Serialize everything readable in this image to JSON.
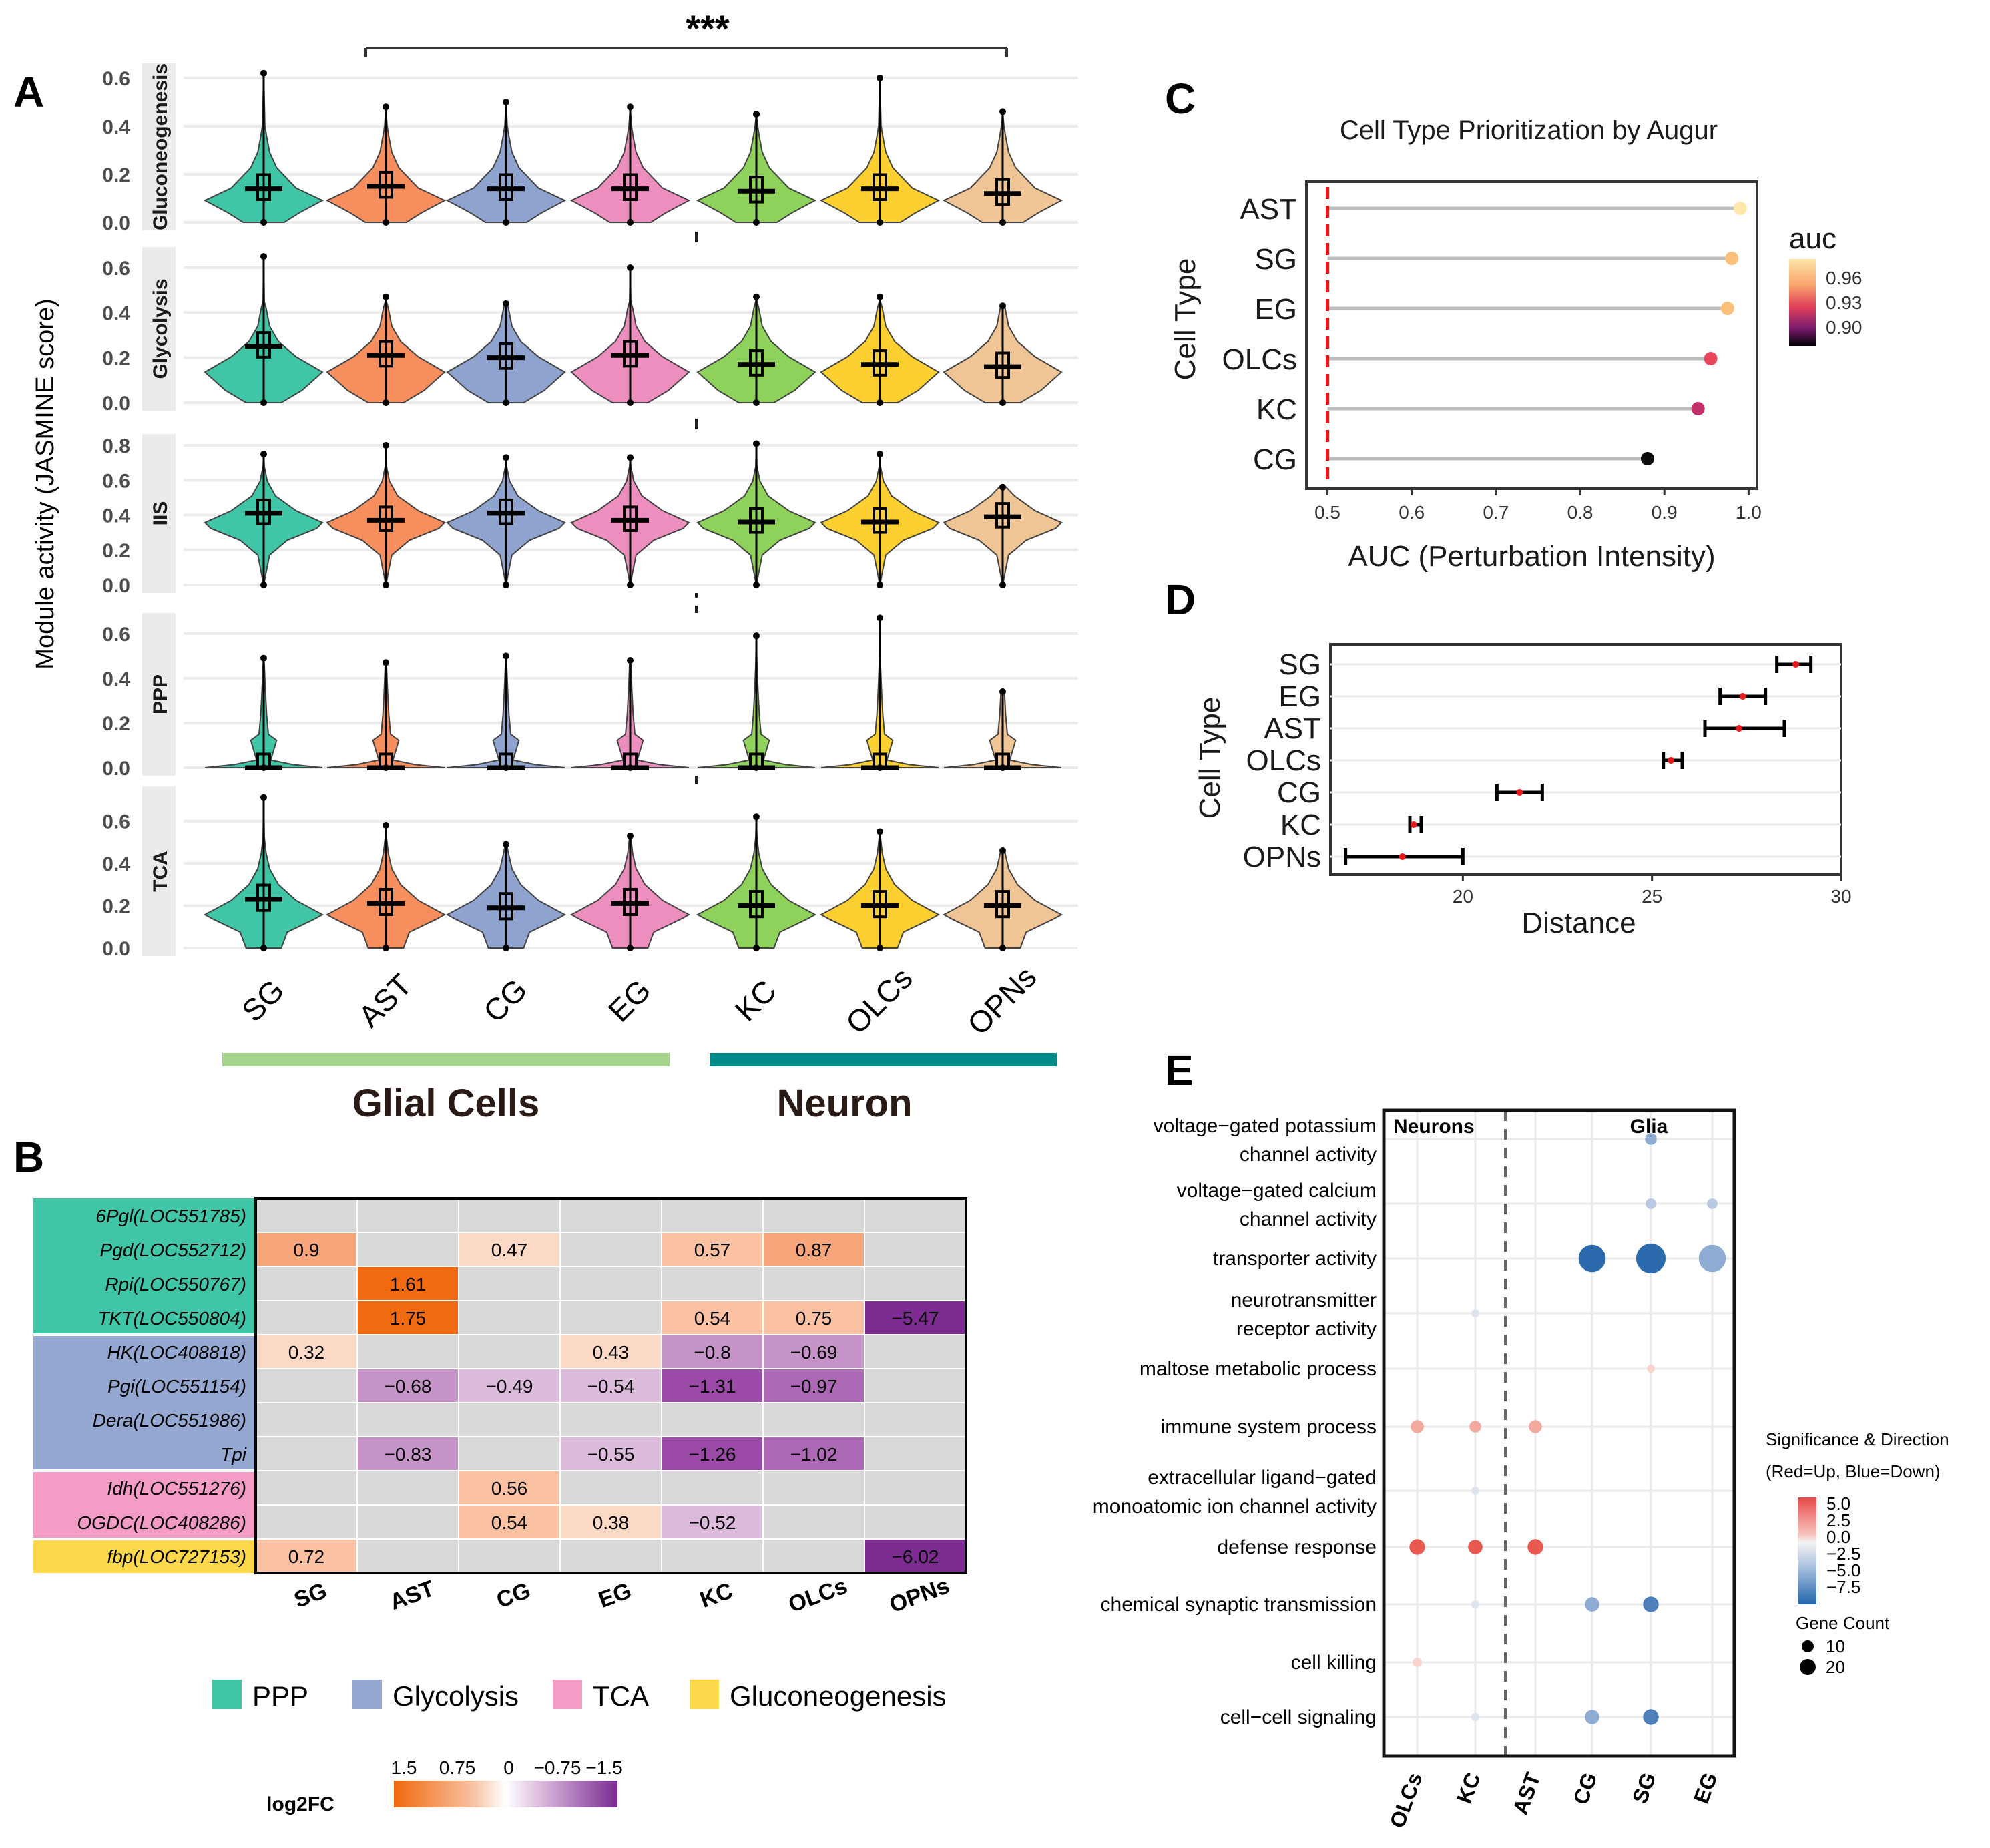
{
  "panels": {
    "A": "A",
    "B": "B",
    "C": "C",
    "D": "D",
    "E": "E"
  },
  "panelA": {
    "significance": "***",
    "ylabel": "Module activity (JASMINE score)",
    "groups": {
      "glia": "Glial Cells",
      "neuron": "Neuron"
    },
    "group_colors": {
      "glia": "#a6d48f",
      "neuron": "#008b8b"
    },
    "cell_colors": [
      "#40c6a6",
      "#f78e5e",
      "#8fa3cf",
      "#ed8fbe",
      "#8ed15b",
      "#fcd030",
      "#f0c595"
    ]
  },
  "panelB": {
    "legend_title": "log2FC",
    "legend_ticks": [
      "1.5",
      "0.75",
      "0",
      "−0.75",
      "−1.5"
    ],
    "pathway_legend": [
      {
        "label": "PPP",
        "color": "#40c6a6"
      },
      {
        "label": "Glycolysis",
        "color": "#94a8d2"
      },
      {
        "label": "TCA",
        "color": "#f39cc6"
      },
      {
        "label": "Gluconeogenesis",
        "color": "#fcd84a"
      }
    ]
  },
  "chart_data": [
    {
      "type": "violin",
      "panel": "A",
      "categories": [
        "SG",
        "AST",
        "CG",
        "EG",
        "KC",
        "OLCs",
        "OPNs"
      ],
      "facets": [
        {
          "name": "Gluconeogenesis",
          "ylim": [
            0,
            0.65
          ],
          "ticks": [
            "0.0",
            "0.2",
            "0.4",
            "0.6"
          ],
          "medians": [
            0.14,
            0.15,
            0.14,
            0.14,
            0.13,
            0.14,
            0.12
          ],
          "max": [
            0.62,
            0.48,
            0.5,
            0.48,
            0.45,
            0.6,
            0.46
          ]
        },
        {
          "name": "Glycolysis",
          "ylim": [
            0,
            0.68
          ],
          "ticks": [
            "0.0",
            "0.2",
            "0.4",
            "0.6"
          ],
          "medians": [
            0.25,
            0.21,
            0.2,
            0.21,
            0.17,
            0.17,
            0.16
          ],
          "max": [
            0.65,
            0.47,
            0.44,
            0.6,
            0.47,
            0.47,
            0.43
          ]
        },
        {
          "name": "IIS",
          "ylim": [
            0,
            0.85
          ],
          "ticks": [
            "0.0",
            "0.2",
            "0.4",
            "0.6",
            "0.8"
          ],
          "medians": [
            0.41,
            0.37,
            0.41,
            0.37,
            0.36,
            0.36,
            0.39
          ],
          "max": [
            0.75,
            0.8,
            0.73,
            0.73,
            0.81,
            0.75,
            0.56
          ]
        },
        {
          "name": "PPP",
          "ylim": [
            0,
            0.68
          ],
          "ticks": [
            "0.0",
            "0.2",
            "0.4",
            "0.6"
          ],
          "medians": [
            0,
            0,
            0,
            0,
            0,
            0,
            0
          ],
          "max": [
            0.49,
            0.47,
            0.5,
            0.48,
            0.59,
            0.67,
            0.34
          ]
        },
        {
          "name": "TCA",
          "ylim": [
            0,
            0.75
          ],
          "ticks": [
            "0.0",
            "0.2",
            "0.4",
            "0.6"
          ],
          "medians": [
            0.23,
            0.21,
            0.19,
            0.21,
            0.2,
            0.2,
            0.2
          ],
          "max": [
            0.71,
            0.58,
            0.49,
            0.53,
            0.62,
            0.55,
            0.46
          ]
        }
      ]
    },
    {
      "type": "heatmap",
      "panel": "B",
      "columns": [
        "SG",
        "AST",
        "CG",
        "EG",
        "KC",
        "OLCs",
        "OPNs"
      ],
      "rows": [
        {
          "label": "6Pgl(LOC551785)",
          "pathway": "PPP",
          "values": [
            null,
            null,
            null,
            null,
            null,
            null,
            null
          ]
        },
        {
          "label": "Pgd(LOC552712)",
          "pathway": "PPP",
          "values": [
            "0.9",
            null,
            "0.47",
            null,
            "0.57",
            "0.87",
            null
          ]
        },
        {
          "label": "Rpi(LOC550767)",
          "pathway": "PPP",
          "values": [
            null,
            "1.61",
            null,
            null,
            null,
            null,
            null
          ]
        },
        {
          "label": "TKT(LOC550804)",
          "pathway": "PPP",
          "values": [
            null,
            "1.75",
            null,
            null,
            "0.54",
            "0.75",
            "−5.47"
          ]
        },
        {
          "label": "HK(LOC408818)",
          "pathway": "Glycolysis",
          "values": [
            "0.32",
            null,
            null,
            "0.43",
            "−0.8",
            "−0.69",
            null
          ]
        },
        {
          "label": "Pgi(LOC551154)",
          "pathway": "Glycolysis",
          "values": [
            null,
            "−0.68",
            "−0.49",
            "−0.54",
            "−1.31",
            "−0.97",
            null
          ]
        },
        {
          "label": "Dera(LOC551986)",
          "pathway": "Glycolysis",
          "values": [
            null,
            null,
            null,
            null,
            null,
            null,
            null
          ]
        },
        {
          "label": "Tpi",
          "pathway": "Glycolysis",
          "values": [
            null,
            "−0.83",
            null,
            "−0.55",
            "−1.26",
            "−1.02",
            null
          ]
        },
        {
          "label": "Idh(LOC551276)",
          "pathway": "TCA",
          "values": [
            null,
            null,
            "0.56",
            null,
            null,
            null,
            null
          ]
        },
        {
          "label": "OGDC(LOC408286)",
          "pathway": "TCA",
          "values": [
            null,
            null,
            "0.54",
            "0.38",
            "−0.52",
            null,
            null
          ]
        },
        {
          "label": "fbp(LOC727153)",
          "pathway": "Gluconeogenesis",
          "values": [
            "0.72",
            null,
            null,
            null,
            null,
            null,
            "−6.02"
          ]
        }
      ]
    },
    {
      "type": "lollipop",
      "panel": "C",
      "title": "Cell Type Prioritization by Augur",
      "xlabel": "AUC (Perturbation Intensity)",
      "ylabel": "Cell Type",
      "categories": [
        "AST",
        "SG",
        "EG",
        "OLCs",
        "KC",
        "CG"
      ],
      "values": [
        0.99,
        0.98,
        0.975,
        0.955,
        0.94,
        0.88
      ],
      "xlim": [
        0.475,
        1.01
      ],
      "xticks": [
        "0.5",
        "0.6",
        "0.7",
        "0.8",
        "0.9",
        "1.0"
      ],
      "reference_line": 0.5,
      "legend_title": "auc",
      "legend_ticks": [
        "0.96",
        "0.93",
        "0.90"
      ]
    },
    {
      "type": "errorbar",
      "panel": "D",
      "xlabel": "Distance",
      "ylabel": "Cell Type",
      "categories": [
        "SG",
        "EG",
        "AST",
        "OLCs",
        "CG",
        "KC",
        "OPNs"
      ],
      "mean": [
        28.8,
        27.4,
        27.3,
        25.5,
        21.5,
        18.7,
        18.4
      ],
      "low": [
        28.3,
        26.8,
        26.4,
        25.3,
        20.9,
        18.6,
        16.9
      ],
      "high": [
        29.2,
        28.0,
        28.5,
        25.8,
        22.1,
        18.9,
        20.0
      ],
      "xlim": [
        16.5,
        30
      ],
      "xticks": [
        "20",
        "25",
        "30"
      ]
    },
    {
      "type": "dotplot",
      "panel": "E",
      "columns": [
        "OLCs",
        "KC",
        "AST",
        "CG",
        "SG",
        "EG"
      ],
      "neuron_label": "Neurons",
      "glia_label": "Glia",
      "terms": [
        "voltage−gated potassium\nchannel activity",
        "voltage−gated calcium\nchannel activity",
        "transporter activity",
        "neurotransmitter\nreceptor activity",
        "maltose metabolic process",
        "immune system process",
        "extracellular ligand−gated\nmonoatomic ion channel activity",
        "defense response",
        "chemical synaptic transmission",
        "cell killing",
        "cell−cell signaling"
      ],
      "points": [
        {
          "term": 0,
          "col": 4,
          "value": -3.5,
          "count": 10
        },
        {
          "term": 1,
          "col": 4,
          "value": -2.5,
          "count": 9
        },
        {
          "term": 1,
          "col": 5,
          "value": -3.0,
          "count": 9
        },
        {
          "term": 2,
          "col": 3,
          "value": -8.0,
          "count": 22
        },
        {
          "term": 2,
          "col": 4,
          "value": -8.0,
          "count": 24
        },
        {
          "term": 2,
          "col": 5,
          "value": -3.5,
          "count": 22
        },
        {
          "term": 3,
          "col": 1,
          "value": -1.0,
          "count": 7
        },
        {
          "term": 4,
          "col": 4,
          "value": 1.5,
          "count": 7
        },
        {
          "term": 5,
          "col": 0,
          "value": 2.5,
          "count": 11
        },
        {
          "term": 5,
          "col": 1,
          "value": 2.5,
          "count": 10
        },
        {
          "term": 5,
          "col": 2,
          "value": 2.0,
          "count": 11
        },
        {
          "term": 6,
          "col": 1,
          "value": -1.0,
          "count": 7
        },
        {
          "term": 7,
          "col": 0,
          "value": 4.5,
          "count": 13
        },
        {
          "term": 7,
          "col": 1,
          "value": 4.0,
          "count": 12
        },
        {
          "term": 7,
          "col": 2,
          "value": 4.5,
          "count": 13
        },
        {
          "term": 8,
          "col": 1,
          "value": -1.0,
          "count": 7
        },
        {
          "term": 8,
          "col": 3,
          "value": -4.0,
          "count": 12
        },
        {
          "term": 8,
          "col": 4,
          "value": -6.0,
          "count": 13
        },
        {
          "term": 9,
          "col": 0,
          "value": 1.0,
          "count": 8
        },
        {
          "term": 10,
          "col": 1,
          "value": -1.0,
          "count": 7
        },
        {
          "term": 10,
          "col": 3,
          "value": -4.0,
          "count": 12
        },
        {
          "term": 10,
          "col": 4,
          "value": -6.0,
          "count": 13
        }
      ],
      "legend_title_1": "Significance & Direction",
      "legend_title_2": "(Red=Up, Blue=Down)",
      "legend_ticks": [
        "5.0",
        "2.5",
        "0.0",
        "−2.5",
        "−5.0",
        "−7.5"
      ],
      "size_title": "Gene Count",
      "size_ticks": [
        "10",
        "20"
      ]
    }
  ]
}
